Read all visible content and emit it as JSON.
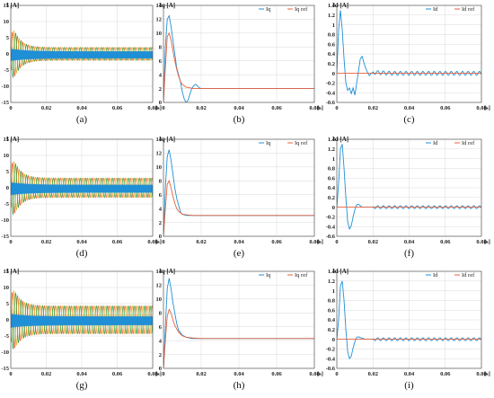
{
  "colors": {
    "blue": "#1f8fd6",
    "orange": "#e8603c",
    "phase_b": "#e8b22a",
    "phase_c": "#2e9e3a",
    "grid": "#d9d9d9",
    "axis": "#444444"
  },
  "chart_data": [
    {
      "id": "a",
      "caption": "(a)",
      "type": "line",
      "ylabel": "I [A]",
      "xunit": "[s]",
      "xlim": [
        0,
        0.08
      ],
      "ylim": [
        -15,
        15
      ],
      "yticks": [
        -15,
        -10,
        -5,
        0,
        5,
        10,
        15
      ],
      "xticks": [
        0,
        0.02,
        0.04,
        0.06,
        0.08
      ],
      "xtick_labels": [
        "0",
        "0.02",
        "0.04",
        "0.06",
        "0.08"
      ],
      "steady_amplitude": 2,
      "peak_transient": 11,
      "wave_frequency_hz": 330,
      "legend": [],
      "series": []
    },
    {
      "id": "b",
      "caption": "(b)",
      "type": "line",
      "ylabel": "Iq [A]",
      "xunit": "[s]",
      "xlim": [
        0,
        0.08
      ],
      "ylim": [
        0,
        14
      ],
      "yticks": [
        0,
        2,
        4,
        6,
        8,
        10,
        12,
        14
      ],
      "xticks": [
        0,
        0.02,
        0.04,
        0.06,
        0.08
      ],
      "xtick_labels": [
        "0",
        "0.02",
        "0.04",
        "0.06",
        "0.08"
      ],
      "legend": [
        "Iq",
        "Iq ref"
      ],
      "series": [
        {
          "name": "Iq",
          "color": "blue",
          "x": [
            0,
            0.001,
            0.002,
            0.003,
            0.004,
            0.005,
            0.006,
            0.007,
            0.008,
            0.009,
            0.01,
            0.011,
            0.012,
            0.013,
            0.014,
            0.015,
            0.016,
            0.017,
            0.018,
            0.019,
            0.02,
            0.022,
            0.025,
            0.03,
            0.04,
            0.05,
            0.06,
            0.07,
            0.08
          ],
          "y": [
            0,
            8,
            12,
            12.5,
            11,
            9,
            7,
            5,
            4,
            3,
            1.5,
            0.5,
            0,
            0.3,
            1.2,
            2,
            2.4,
            2.6,
            2.4,
            2.1,
            2,
            2,
            2,
            2,
            2,
            2,
            2,
            2,
            2
          ]
        },
        {
          "name": "Iq ref",
          "color": "orange",
          "x": [
            0,
            0.001,
            0.002,
            0.003,
            0.004,
            0.005,
            0.006,
            0.007,
            0.008,
            0.009,
            0.01,
            0.012,
            0.014,
            0.016,
            0.02,
            0.03,
            0.08
          ],
          "y": [
            0,
            5,
            9.5,
            10,
            9,
            7.5,
            6,
            4.8,
            3.8,
            3,
            2.6,
            2.2,
            2.1,
            2,
            2,
            2,
            2
          ]
        }
      ]
    },
    {
      "id": "c",
      "caption": "(c)",
      "type": "line",
      "ylabel": "Id [A]",
      "xunit": "[s]",
      "xlim": [
        0,
        0.08
      ],
      "ylim": [
        -0.6,
        1.4
      ],
      "yticks": [
        -0.6,
        -0.4,
        -0.2,
        0,
        0.2,
        0.4,
        0.6,
        0.8,
        1,
        1.2,
        1.4
      ],
      "ytick_labels": [
        "-0.6",
        "-0.4",
        "-0.2",
        "0",
        "0.2",
        "0.4",
        "0.6",
        "0.8",
        "1",
        "1.2",
        "1.4"
      ],
      "xticks": [
        0,
        0.02,
        0.04,
        0.06,
        0.08
      ],
      "xtick_labels": [
        "0",
        "0.02",
        "0.04",
        "0.06",
        "0.08"
      ],
      "legend": [
        "Id",
        "Id ref"
      ],
      "ripple_amplitude": 0.04,
      "series": [
        {
          "name": "Id",
          "color": "blue",
          "x": [
            0,
            0.001,
            0.002,
            0.003,
            0.004,
            0.005,
            0.006,
            0.007,
            0.008,
            0.009,
            0.01,
            0.011,
            0.012,
            0.013,
            0.014,
            0.015,
            0.016,
            0.017,
            0.018,
            0.019,
            0.02,
            0.03,
            0.04,
            0.05,
            0.06,
            0.07,
            0.08
          ],
          "y": [
            0,
            0.9,
            1.3,
            0.9,
            0.3,
            -0.2,
            -0.35,
            -0.3,
            -0.42,
            -0.3,
            -0.45,
            -0.2,
            0.05,
            0.3,
            0.35,
            0.22,
            0.1,
            0.02,
            -0.05,
            0,
            0.02,
            0,
            0,
            0,
            0,
            0,
            0
          ]
        },
        {
          "name": "Id ref",
          "color": "orange",
          "x": [
            0,
            0.08
          ],
          "y": [
            0,
            0
          ]
        }
      ]
    },
    {
      "id": "d",
      "caption": "(d)",
      "type": "line",
      "ylabel": "I [A]",
      "xunit": "[s]",
      "xlim": [
        0,
        0.08
      ],
      "ylim": [
        -15,
        15
      ],
      "yticks": [
        -15,
        -10,
        -5,
        0,
        5,
        10,
        15
      ],
      "xticks": [
        0,
        0.02,
        0.04,
        0.06,
        0.08
      ],
      "xtick_labels": [
        "0",
        "0.02",
        "0.04",
        "0.06",
        "0.08"
      ],
      "steady_amplitude": 3,
      "peak_transient": 12,
      "wave_frequency_hz": 330,
      "legend": [],
      "series": []
    },
    {
      "id": "e",
      "caption": "(e)",
      "type": "line",
      "ylabel": "Iq [A]",
      "xunit": "[s]",
      "xlim": [
        0,
        0.08
      ],
      "ylim": [
        0,
        14
      ],
      "yticks": [
        0,
        2,
        4,
        6,
        8,
        10,
        12,
        14
      ],
      "xticks": [
        0,
        0.02,
        0.04,
        0.06,
        0.08
      ],
      "xtick_labels": [
        "0",
        "0.02",
        "0.04",
        "0.06",
        "0.08"
      ],
      "legend": [
        "Iq",
        "Iq ref"
      ],
      "series": [
        {
          "name": "Iq",
          "color": "blue",
          "x": [
            0,
            0.001,
            0.002,
            0.003,
            0.004,
            0.005,
            0.006,
            0.007,
            0.008,
            0.009,
            0.01,
            0.012,
            0.014,
            0.016,
            0.02,
            0.03,
            0.08
          ],
          "y": [
            0,
            7,
            11.5,
            12.5,
            11,
            9,
            7,
            5.5,
            4.5,
            3.5,
            3.2,
            3,
            3,
            3,
            3,
            3,
            3
          ]
        },
        {
          "name": "Iq ref",
          "color": "orange",
          "x": [
            0,
            0.001,
            0.002,
            0.003,
            0.004,
            0.005,
            0.006,
            0.007,
            0.008,
            0.01,
            0.012,
            0.016,
            0.02,
            0.08
          ],
          "y": [
            0,
            4,
            7.5,
            8,
            7,
            5.8,
            4.8,
            4,
            3.6,
            3.2,
            3.1,
            3,
            3,
            3
          ]
        }
      ]
    },
    {
      "id": "f",
      "caption": "(f)",
      "type": "line",
      "ylabel": "Id [A]",
      "xunit": "[s]",
      "xlim": [
        0,
        0.08
      ],
      "ylim": [
        -0.6,
        1.4
      ],
      "yticks": [
        -0.6,
        -0.4,
        -0.2,
        0,
        0.2,
        0.4,
        0.6,
        0.8,
        1,
        1.2,
        1.4
      ],
      "ytick_labels": [
        "-0.6",
        "-0.4",
        "-0.2",
        "0",
        "0.2",
        "0.4",
        "0.6",
        "0.8",
        "1",
        "1.2",
        "1.4"
      ],
      "xticks": [
        0,
        0.02,
        0.04,
        0.06,
        0.08
      ],
      "xtick_labels": [
        "0",
        "0.02",
        "0.04",
        "0.06",
        "0.08"
      ],
      "legend": [
        "Id",
        "Id ref"
      ],
      "ripple_amplitude": 0.03,
      "series": [
        {
          "name": "Id",
          "color": "blue",
          "x": [
            0,
            0.001,
            0.002,
            0.003,
            0.004,
            0.005,
            0.006,
            0.007,
            0.008,
            0.009,
            0.01,
            0.011,
            0.012,
            0.013,
            0.014,
            0.016,
            0.02,
            0.03,
            0.08
          ],
          "y": [
            0,
            0.5,
            1.2,
            1.3,
            0.8,
            0.2,
            -0.3,
            -0.45,
            -0.38,
            -0.2,
            -0.05,
            0.05,
            0.06,
            0.03,
            0,
            0,
            0,
            0,
            0
          ]
        },
        {
          "name": "Id ref",
          "color": "orange",
          "x": [
            0,
            0.08
          ],
          "y": [
            0,
            0
          ]
        }
      ]
    },
    {
      "id": "g",
      "caption": "(g)",
      "type": "line",
      "ylabel": "I [A]",
      "xunit": "[s]",
      "xlim": [
        0,
        0.08
      ],
      "ylim": [
        -15,
        15
      ],
      "yticks": [
        -15,
        -10,
        -5,
        0,
        5,
        10,
        15
      ],
      "xticks": [
        0,
        0.02,
        0.04,
        0.06,
        0.08
      ],
      "xtick_labels": [
        "0",
        "0.02",
        "0.04",
        "0.06",
        "0.08"
      ],
      "steady_amplitude": 4.3,
      "peak_transient": 12.5,
      "wave_frequency_hz": 330,
      "legend": [],
      "series": []
    },
    {
      "id": "h",
      "caption": "(h)",
      "type": "line",
      "ylabel": "Iq [A]",
      "xunit": "[s]",
      "xlim": [
        0,
        0.08
      ],
      "ylim": [
        0,
        14
      ],
      "yticks": [
        0,
        2,
        4,
        6,
        8,
        10,
        12,
        14
      ],
      "xticks": [
        0,
        0.02,
        0.04,
        0.06,
        0.08
      ],
      "xtick_labels": [
        "0",
        "0.02",
        "0.04",
        "0.06",
        "0.08"
      ],
      "legend": [
        "Iq",
        "Iq ref"
      ],
      "series": [
        {
          "name": "Iq",
          "color": "blue",
          "x": [
            0,
            0.001,
            0.002,
            0.003,
            0.004,
            0.005,
            0.006,
            0.007,
            0.008,
            0.01,
            0.012,
            0.015,
            0.02,
            0.03,
            0.08
          ],
          "y": [
            0,
            6,
            11.5,
            13,
            11.5,
            9.5,
            8,
            6.5,
            5.5,
            4.8,
            4.5,
            4.3,
            4.3,
            4.3,
            4.3
          ]
        },
        {
          "name": "Iq ref",
          "color": "orange",
          "x": [
            0,
            0.001,
            0.002,
            0.003,
            0.004,
            0.005,
            0.006,
            0.008,
            0.01,
            0.012,
            0.015,
            0.02,
            0.08
          ],
          "y": [
            0,
            4,
            7.5,
            8.5,
            8,
            7,
            6.2,
            5.2,
            4.7,
            4.5,
            4.4,
            4.3,
            4.3
          ]
        }
      ]
    },
    {
      "id": "i",
      "caption": "(i)",
      "type": "line",
      "ylabel": "Id [A]",
      "xunit": "[s]",
      "xlim": [
        0,
        0.08
      ],
      "ylim": [
        -0.6,
        1.4
      ],
      "yticks": [
        -0.6,
        -0.4,
        -0.2,
        0,
        0.2,
        0.4,
        0.6,
        0.8,
        1,
        1.2,
        1.4
      ],
      "ytick_labels": [
        "-0.6",
        "-0.4",
        "-0.2",
        "0",
        "0.2",
        "0.4",
        "0.6",
        "0.8",
        "1",
        "1.2",
        "1.4"
      ],
      "xticks": [
        0,
        0.02,
        0.04,
        0.06,
        0.08
      ],
      "xtick_labels": [
        "0",
        "0.02",
        "0.04",
        "0.06",
        "0.08"
      ],
      "legend": [
        "Id",
        "Id ref"
      ],
      "ripple_amplitude": 0.03,
      "series": [
        {
          "name": "Id",
          "color": "blue",
          "x": [
            0,
            0.001,
            0.002,
            0.003,
            0.004,
            0.005,
            0.006,
            0.007,
            0.008,
            0.009,
            0.01,
            0.011,
            0.012,
            0.014,
            0.016,
            0.02,
            0.03,
            0.08
          ],
          "y": [
            0,
            0.4,
            1.1,
            1.2,
            0.8,
            0.2,
            -0.25,
            -0.4,
            -0.35,
            -0.18,
            -0.05,
            0.04,
            0.05,
            0.02,
            0,
            0,
            0,
            0
          ]
        },
        {
          "name": "Id ref",
          "color": "orange",
          "x": [
            0,
            0.08
          ],
          "y": [
            0,
            0
          ]
        }
      ]
    }
  ]
}
